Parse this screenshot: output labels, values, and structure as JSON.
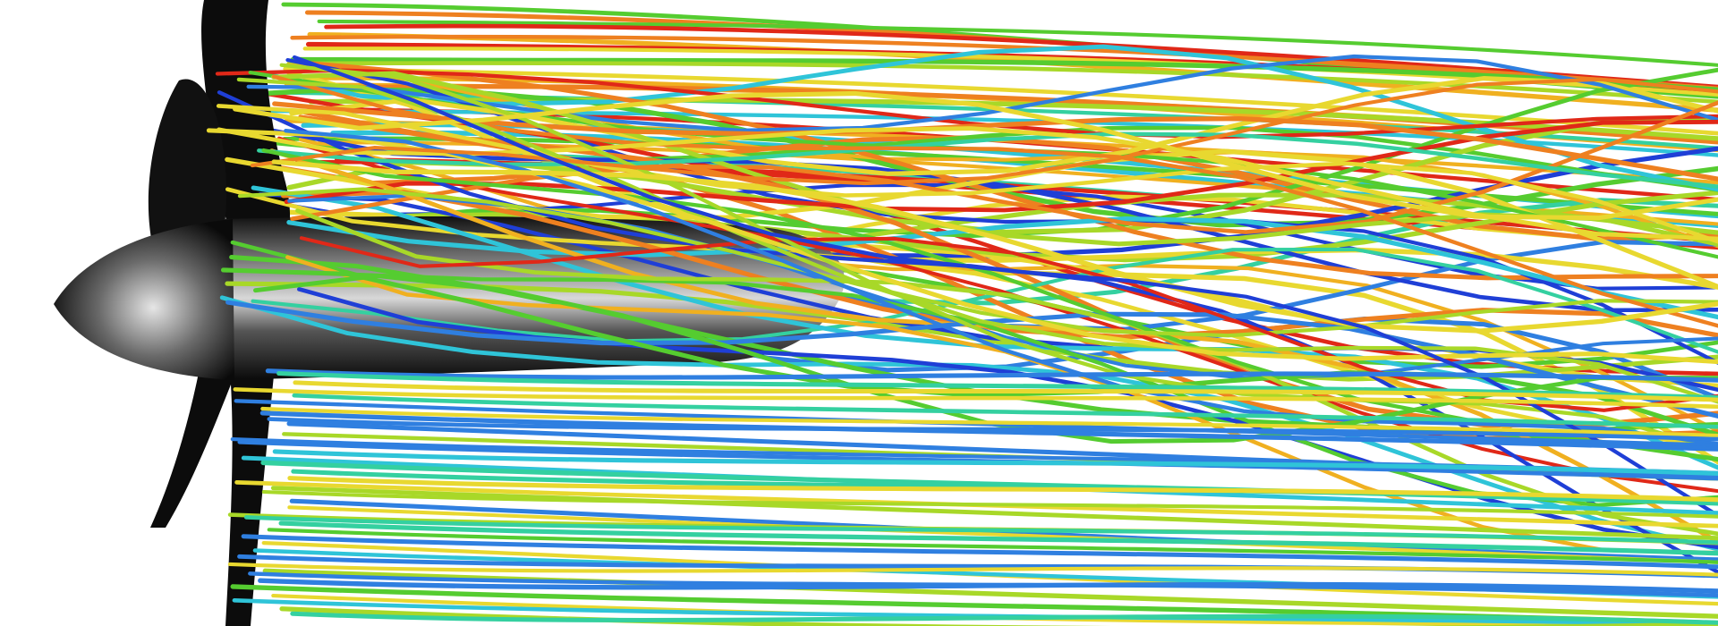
{
  "scene": {
    "subject": "propeller-wake-streamlines",
    "palette": [
      "#1f3fd6",
      "#2f7fe0",
      "#2fc4d8",
      "#34d0a0",
      "#55cc30",
      "#a8d828",
      "#e8d830",
      "#f0b020",
      "#ee8020",
      "#e02818"
    ],
    "background": "#ffffff",
    "body_color": "#0c0c0c"
  }
}
